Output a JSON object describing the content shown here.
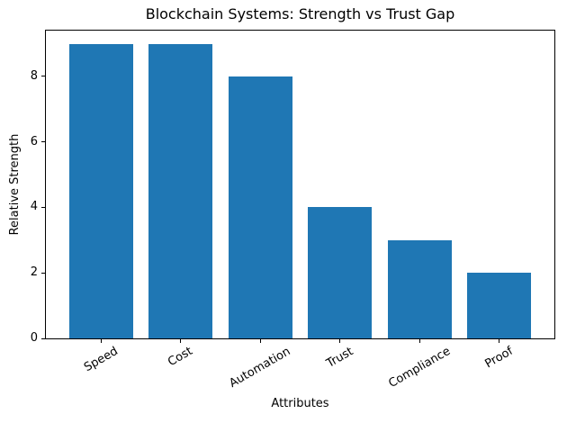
{
  "chart_data": {
    "type": "bar",
    "title": "Blockchain Systems: Strength vs Trust Gap",
    "categories": [
      "Speed",
      "Cost",
      "Automation",
      "Trust",
      "Compliance",
      "Proof"
    ],
    "values": [
      9,
      9,
      8,
      4,
      3,
      2
    ],
    "xlabel": "Attributes",
    "ylabel": "Relative Strength",
    "yticks": [
      0,
      2,
      4,
      6,
      8
    ],
    "ylim": [
      0,
      9.4
    ],
    "bar_color": "#1f77b4",
    "axis_color": "#000000",
    "text_color": "#000000",
    "x_tick_rotation_deg": 30,
    "grid": false,
    "legend": "none"
  }
}
